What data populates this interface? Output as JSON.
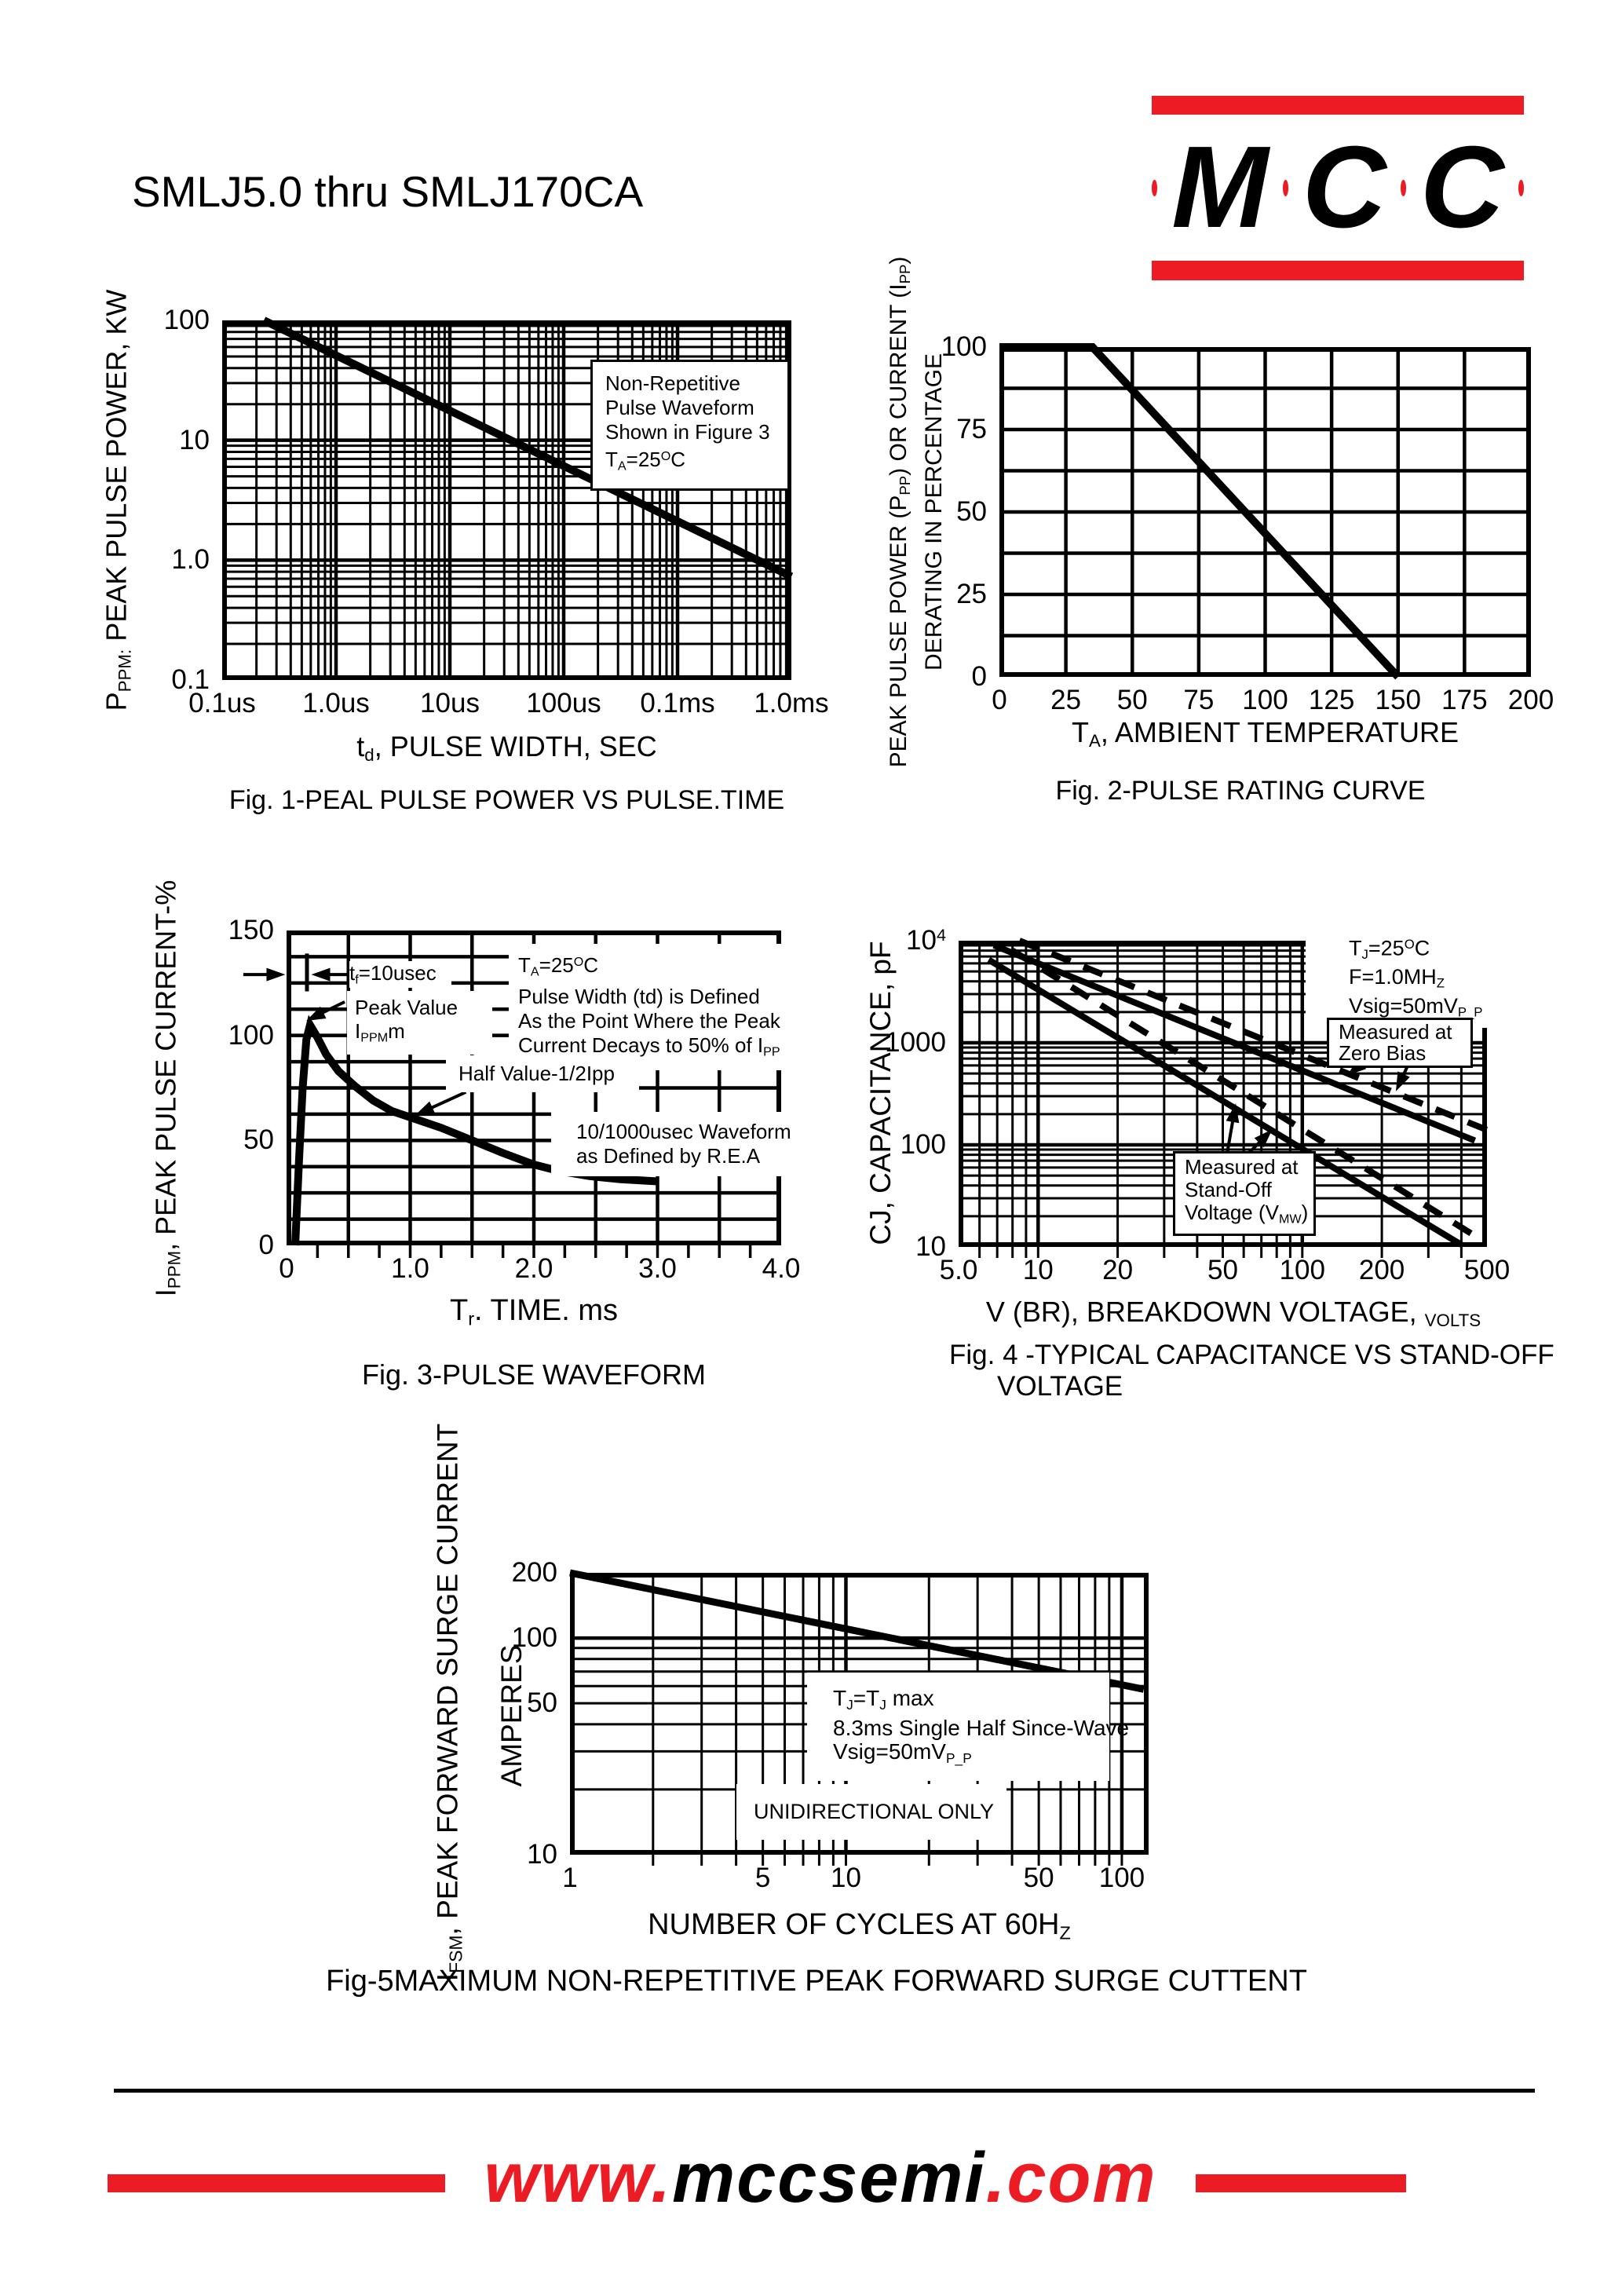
{
  "page": {
    "title": "SMLJ5.0 thru SMLJ170CA",
    "footer": {
      "www": "www.",
      "mid": "mccsemi",
      "end": ".com"
    }
  },
  "logo": {
    "letters": [
      "M",
      "C",
      "C"
    ]
  },
  "colors": {
    "accent_red": "#ec1c24",
    "ink": "#000000"
  },
  "chart_data": {
    "fig1": {
      "type": "line",
      "title": "Fig. 1-PEAL PULSE POWER VS PULSE.TIME",
      "xlabel": [
        {
          "t": "t"
        },
        {
          "s": "d"
        },
        {
          "t": ", PULSE WIDTH, SEC"
        }
      ],
      "ylabel": [
        {
          "t": "P"
        },
        {
          "s": "PPM:"
        },
        {
          "t": " PEAK PULSE POWER, KW"
        }
      ],
      "x_axis": {
        "type": "decades",
        "segments": 5,
        "note": "tick labels duplicated 100us/0.1ms; series x given in decade index units"
      },
      "y_axis": {
        "type": "log",
        "min": 0.1,
        "max": 100
      },
      "x_ticks": [
        {
          "v": 0,
          "label": "0.1us"
        },
        {
          "v": 1,
          "label": "1.0us"
        },
        {
          "v": 2,
          "label": "10us"
        },
        {
          "v": 3,
          "label": "100us"
        },
        {
          "v": 4,
          "label": "0.1ms"
        },
        {
          "v": 5,
          "label": "1.0ms"
        }
      ],
      "y_ticks": [
        {
          "v": 100,
          "label": "100"
        },
        {
          "v": 10,
          "label": "10"
        },
        {
          "v": 1,
          "label": "1.0"
        },
        {
          "v": 0.1,
          "label": "0.1"
        }
      ],
      "series": [
        {
          "name": "peak-pulse-power-kw",
          "width": 10,
          "points": [
            [
              0.366,
              100
            ],
            [
              5,
              0.73
            ]
          ]
        }
      ],
      "note": {
        "lines": [
          "Non-Repetitive",
          "Pulse Waveform",
          "Shown in Figure 3",
          [
            {
              "t": "T"
            },
            {
              "s": "A"
            },
            {
              "t": "=25"
            },
            {
              "p": "O"
            },
            {
              "t": "C"
            }
          ]
        ]
      }
    },
    "fig2": {
      "type": "line",
      "title": "Fig. 2-PULSE RATING CURVE",
      "xlabel": [
        {
          "t": "T"
        },
        {
          "s": "A"
        },
        {
          "t": ", AMBIENT TEMPERATURE"
        }
      ],
      "ylabel_line1": [
        {
          "t": "PEAK PULSE POWER (P"
        },
        {
          "s": "PP"
        },
        {
          "t": ") OR CURRENT (I"
        },
        {
          "s": "PP"
        },
        {
          "t": ")"
        }
      ],
      "ylabel_line2": [
        {
          "t": "DERATING IN PERCENTAGE"
        }
      ],
      "x_axis": {
        "type": "linear",
        "min": 0,
        "max": 200,
        "grid_step": 25
      },
      "y_axis": {
        "type": "linear",
        "min": 0,
        "max": 100,
        "grid_step": 12.5
      },
      "x_ticks": [
        {
          "v": 0,
          "label": "0"
        },
        {
          "v": 25,
          "label": "25"
        },
        {
          "v": 50,
          "label": "50"
        },
        {
          "v": 75,
          "label": "75"
        },
        {
          "v": 100,
          "label": "100"
        },
        {
          "v": 125,
          "label": "125"
        },
        {
          "v": 150,
          "label": "150"
        },
        {
          "v": 175,
          "label": "175"
        },
        {
          "v": 200,
          "label": "200"
        }
      ],
      "y_ticks": [
        {
          "v": 100,
          "label": "100"
        },
        {
          "v": 75,
          "label": "75"
        },
        {
          "v": 50,
          "label": "50"
        },
        {
          "v": 25,
          "label": "25"
        },
        {
          "v": 0,
          "label": "0"
        }
      ],
      "series": [
        {
          "name": "derating-percent",
          "width": 10,
          "points": [
            [
              0,
              100
            ],
            [
              35,
              100
            ],
            [
              150,
              0
            ]
          ]
        }
      ]
    },
    "fig3": {
      "type": "line",
      "title": "Fig. 3-PULSE WAVEFORM",
      "xlabel": [
        {
          "t": "T"
        },
        {
          "s": "r"
        },
        {
          "t": ". TIME. ms"
        }
      ],
      "ylabel": [
        {
          "t": "I"
        },
        {
          "s": "PPM"
        },
        {
          "t": ", PEAK PULSE CURRENT-%"
        }
      ],
      "x_axis": {
        "type": "linear",
        "min": 0,
        "max": 4,
        "grid_step": 0.5
      },
      "y_axis": {
        "type": "linear",
        "min": 0,
        "max": 150,
        "grid_step": 12.5
      },
      "x_ticks": [
        {
          "v": 0,
          "label": "0"
        },
        {
          "v": 1,
          "label": "1.0"
        },
        {
          "v": 2,
          "label": "2.0"
        },
        {
          "v": 3,
          "label": "3.0"
        },
        {
          "v": 4,
          "label": "4.0"
        }
      ],
      "y_ticks": [
        {
          "v": 150,
          "label": "150"
        },
        {
          "v": 100,
          "label": "100"
        },
        {
          "v": 50,
          "label": "50"
        },
        {
          "v": 0,
          "label": "0"
        }
      ],
      "series": [
        {
          "name": "pulse-waveform-percent",
          "width": 10,
          "points": [
            [
              0.07,
              0
            ],
            [
              0.1,
              40
            ],
            [
              0.13,
              75
            ],
            [
              0.16,
              98
            ],
            [
              0.19,
              105
            ],
            [
              0.25,
              99
            ],
            [
              0.32,
              91
            ],
            [
              0.42,
              83
            ],
            [
              0.55,
              76
            ],
            [
              0.7,
              69
            ],
            [
              0.85,
              64
            ],
            [
              1.0,
              61
            ],
            [
              1.25,
              56
            ],
            [
              1.5,
              50
            ],
            [
              1.75,
              44
            ],
            [
              2.0,
              38.5
            ],
            [
              2.2,
              35.5
            ],
            [
              2.45,
              33
            ],
            [
              2.7,
              31.5
            ],
            [
              2.85,
              31
            ],
            [
              3.0,
              30.5
            ]
          ]
        }
      ],
      "arrows": [
        {
          "from": [
            -0.35,
            129
          ],
          "to": [
            -0.01,
            129
          ]
        },
        {
          "from": [
            0.52,
            129
          ],
          "to": [
            0.2,
            129
          ]
        },
        {
          "from": [
            0.47,
            116
          ],
          "to": [
            0.16,
            107
          ]
        },
        {
          "from": [
            1.45,
            73
          ],
          "to": [
            1.04,
            62
          ]
        }
      ],
      "segments": [
        {
          "from": [
            0.165,
            121
          ],
          "to": [
            0.165,
            139
          ]
        }
      ],
      "stubs": {
        "bottom_step": 0.25,
        "top_step": 0.5,
        "right_step": 12.5
      },
      "note_tf": [
        {
          "t": "t"
        },
        {
          "s": "f"
        },
        {
          "t": "=10usec"
        }
      ],
      "note_cond": {
        "lines": [
          [
            {
              "t": "T"
            },
            {
              "s": "A"
            },
            {
              "t": "=25"
            },
            {
              "p": "O"
            },
            {
              "t": "C"
            }
          ],
          "Pulse Width (td) is Defined",
          "As the Point Where the Peak",
          [
            {
              "t": "Current Decays to 50% of I"
            },
            {
              "s": "PP"
            }
          ]
        ]
      },
      "note_peak": {
        "lines": [
          "Peak Value",
          [
            {
              "t": "I"
            },
            {
              "s": "PPM"
            },
            {
              "t": "m"
            }
          ]
        ]
      },
      "note_half": "Half Value-1/2Ipp",
      "note_rea": {
        "lines": [
          "10/1000usec Waveform",
          "as Defined by R.E.A"
        ]
      }
    },
    "fig4": {
      "type": "line",
      "title_line1": "Fig. 4 -TYPICAL CAPACITANCE VS STAND-OFF",
      "title_line2": "VOLTAGE",
      "xlabel": [
        {
          "t": "V (BR), BREAKDOWN VOLTAGE, "
        },
        {
          "s": "VOLTS"
        }
      ],
      "ylabel": [
        {
          "t": "CJ, CAPACITANCE, pF"
        }
      ],
      "x_axis": {
        "type": "log",
        "min": 5,
        "max": 500
      },
      "y_axis": {
        "type": "log",
        "min": 10,
        "max": 10000
      },
      "x_ticks": [
        {
          "v": 5,
          "label": "5.0"
        },
        {
          "v": 10,
          "label": "10"
        },
        {
          "v": 20,
          "label": "20"
        },
        {
          "v": 50,
          "label": "50"
        },
        {
          "v": 100,
          "label": "100"
        },
        {
          "v": 200,
          "label": "200"
        },
        {
          "v": 500,
          "label": "500"
        }
      ],
      "y_ticks": [
        {
          "v": 10000,
          "label": [
            {
              "t": "10"
            },
            {
              "p": "4"
            }
          ]
        },
        {
          "v": 1000,
          "label": "1000"
        },
        {
          "v": 100,
          "label": "100"
        },
        {
          "v": 10,
          "label": "10"
        }
      ],
      "series": [
        {
          "name": "capacitance-zero-bias-upper",
          "width": 8,
          "points": [
            [
              6.8,
              9000
            ],
            [
              450,
              110
            ]
          ]
        },
        {
          "name": "capacitance-standoff-lower",
          "width": 8,
          "points": [
            [
              6.5,
              6500
            ],
            [
              400,
              10.5
            ]
          ]
        },
        {
          "name": "capacitance-dashed-upper",
          "width": 8,
          "dash": true,
          "points": [
            [
              8.5,
              10000
            ],
            [
              500,
              140
            ]
          ]
        },
        {
          "name": "capacitance-dashed-lower",
          "width": 8,
          "dash": true,
          "points": [
            [
              8.0,
              8000
            ],
            [
              470,
              12
            ]
          ]
        }
      ],
      "arrows": [
        {
          "from": [
            178,
            700
          ],
          "to": [
            148,
            480
          ]
        },
        {
          "from": [
            258,
            700
          ],
          "to": [
            226,
            335
          ]
        },
        {
          "from": [
            52,
            84
          ],
          "to": [
            56,
            255
          ]
        },
        {
          "from": [
            63,
            84
          ],
          "to": [
            77,
            142
          ]
        }
      ],
      "stubs": {
        "bottom_minor": true
      },
      "note_cond": {
        "lines": [
          [
            {
              "t": "T"
            },
            {
              "s": "J"
            },
            {
              "t": "=25"
            },
            {
              "p": "O"
            },
            {
              "t": "C"
            }
          ],
          [
            {
              "t": "F=1.0MH"
            },
            {
              "s": "Z"
            }
          ],
          [
            {
              "t": "Vsig=50mV"
            },
            {
              "s": "P_P"
            }
          ]
        ]
      },
      "note_zero": {
        "lines": [
          "Measured at",
          "Zero Bias"
        ]
      },
      "note_standoff": {
        "lines": [
          "Measured at",
          "Stand-Off",
          [
            {
              "t": "Voltage (V"
            },
            {
              "s": "MW"
            },
            {
              "t": ")"
            }
          ]
        ]
      }
    },
    "fig5": {
      "type": "line",
      "title": "Fig-5MAXIMUM NON-REPETITIVE PEAK FORWARD SURGE CUTTENT",
      "xlabel": [
        {
          "t": "NUMBER OF CYCLES AT 60H"
        },
        {
          "s": "Z"
        }
      ],
      "ylabel_line1": [
        {
          "t": "I"
        },
        {
          "s": "FSM"
        },
        {
          "t": ", PEAK FORWARD SURGE CURRENT"
        }
      ],
      "ylabel_line2": [
        {
          "t": "AMPERES"
        }
      ],
      "x_axis": {
        "type": "log",
        "min": 1,
        "max": 125
      },
      "y_axis": {
        "type": "log",
        "min": 10,
        "max": 200
      },
      "x_ticks": [
        {
          "v": 1,
          "label": "1"
        },
        {
          "v": 5,
          "label": "5"
        },
        {
          "v": 10,
          "label": "10"
        },
        {
          "v": 50,
          "label": "50"
        },
        {
          "v": 100,
          "label": "100"
        }
      ],
      "y_ticks": [
        {
          "v": 200,
          "label": "200"
        },
        {
          "v": 100,
          "label": "100"
        },
        {
          "v": 50,
          "label": "50"
        },
        {
          "v": 10,
          "label": "10"
        }
      ],
      "series": [
        {
          "name": "surge-current-amps",
          "width": 9,
          "points": [
            [
              1,
              200
            ],
            [
              120,
              58
            ]
          ]
        }
      ],
      "stubs": {
        "bottom_minor": true
      },
      "note_cond": {
        "lines": [
          [
            {
              "t": "T"
            },
            {
              "s": "J"
            },
            {
              "t": "=T"
            },
            {
              "s": "J"
            },
            {
              "t": " max"
            }
          ],
          "8.3ms Single Half Since-Wave",
          [
            {
              "t": "Vsig=50mV"
            },
            {
              "s": "P_P"
            }
          ]
        ]
      },
      "note_uni": "UNIDIRECTIONAL ONLY"
    }
  }
}
